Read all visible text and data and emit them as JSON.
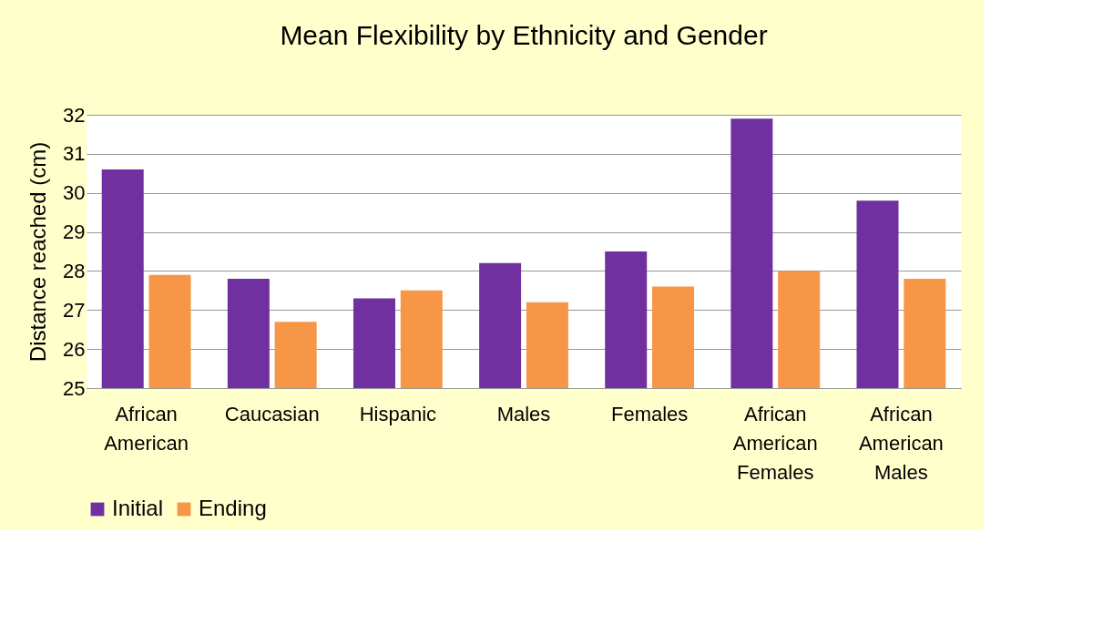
{
  "chart_data": {
    "type": "bar",
    "title": "Mean Flexibility by Ethnicity and Gender",
    "ylabel": "Distance reached (cm)",
    "categories": [
      "African American",
      "Caucasian",
      "Hispanic",
      "Males",
      "Females",
      "African American Females",
      "African American Males"
    ],
    "series": [
      {
        "name": "Initial",
        "color": "#7030a0",
        "values": [
          30.6,
          27.8,
          27.3,
          28.2,
          28.5,
          31.9,
          29.8
        ]
      },
      {
        "name": "Ending",
        "color": "#f79646",
        "values": [
          27.9,
          26.7,
          27.5,
          27.2,
          27.6,
          28.0,
          27.8
        ]
      }
    ],
    "ylim": [
      25,
      32
    ],
    "yticks": [
      25,
      26,
      27,
      28,
      29,
      30,
      31,
      32
    ],
    "grid": "y",
    "legend": "bottom"
  }
}
